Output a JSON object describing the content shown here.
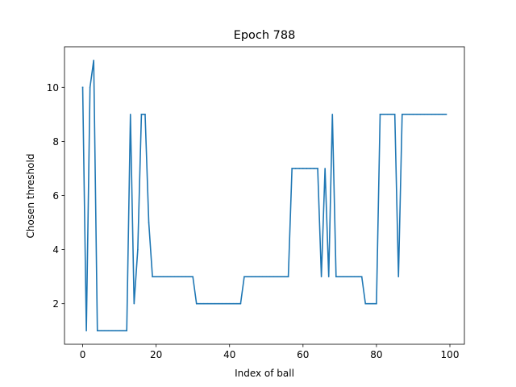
{
  "chart_data": {
    "type": "line",
    "title": "Epoch 788",
    "xlabel": "Index of ball",
    "ylabel": "Chosen threshold",
    "xlim": [
      -4.95,
      103.95
    ],
    "ylim": [
      0.5,
      11.5
    ],
    "xticks": [
      0,
      20,
      40,
      60,
      80,
      100
    ],
    "yticks": [
      2,
      4,
      6,
      8,
      10
    ],
    "grid": false,
    "legend": "none",
    "series": [
      {
        "color": "#1f77b4",
        "x": [
          0,
          1,
          2,
          3,
          4,
          5,
          6,
          7,
          8,
          9,
          10,
          11,
          12,
          13,
          14,
          15,
          16,
          17,
          18,
          19,
          20,
          21,
          22,
          23,
          24,
          25,
          26,
          27,
          28,
          29,
          30,
          31,
          32,
          33,
          34,
          35,
          36,
          37,
          38,
          39,
          40,
          41,
          42,
          43,
          44,
          45,
          46,
          47,
          48,
          49,
          50,
          51,
          52,
          53,
          54,
          55,
          56,
          57,
          58,
          59,
          60,
          61,
          62,
          63,
          64,
          65,
          66,
          67,
          68,
          69,
          70,
          71,
          72,
          73,
          74,
          75,
          76,
          77,
          78,
          79,
          80,
          81,
          82,
          83,
          84,
          85,
          86,
          87,
          88,
          89,
          90,
          91,
          92,
          93,
          94,
          95,
          96,
          97,
          98,
          99
        ],
        "y": [
          10,
          1,
          10,
          11,
          1,
          1,
          1,
          1,
          1,
          1,
          1,
          1,
          1,
          9,
          2,
          4,
          9,
          9,
          5,
          3,
          3,
          3,
          3,
          3,
          3,
          3,
          3,
          3,
          3,
          3,
          3,
          2,
          2,
          2,
          2,
          2,
          2,
          2,
          2,
          2,
          2,
          2,
          2,
          2,
          3,
          3,
          3,
          3,
          3,
          3,
          3,
          3,
          3,
          3,
          3,
          3,
          3,
          7,
          7,
          7,
          7,
          7,
          7,
          7,
          7,
          3,
          7,
          3,
          9,
          3,
          3,
          3,
          3,
          3,
          3,
          3,
          3,
          2,
          2,
          2,
          2,
          9,
          9,
          9,
          9,
          9,
          3,
          9,
          9,
          9,
          9,
          9,
          9,
          9,
          9,
          9,
          9,
          9,
          9,
          9
        ]
      }
    ]
  }
}
